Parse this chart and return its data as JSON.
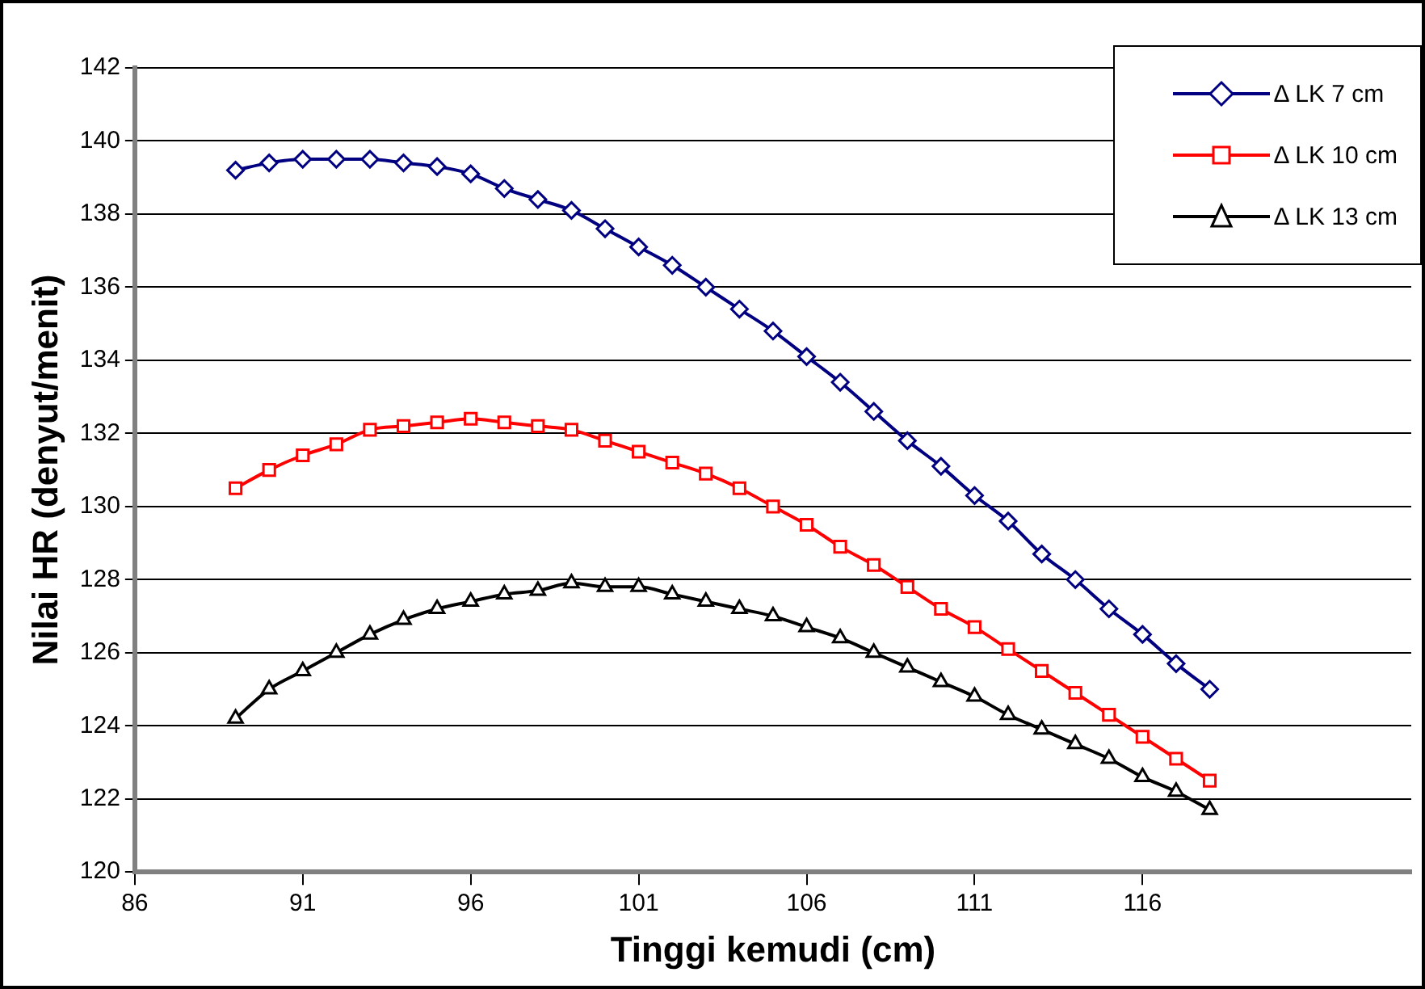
{
  "chart_data": {
    "type": "line",
    "xlabel": "Tinggi kemudi (cm)",
    "ylabel": "Nilai HR (denyut/menit)",
    "x": [
      89,
      90,
      91,
      92,
      93,
      94,
      95,
      96,
      97,
      98,
      99,
      100,
      101,
      102,
      103,
      104,
      105,
      106,
      107,
      108,
      109,
      110,
      111,
      112,
      113,
      114,
      115,
      116,
      117,
      118
    ],
    "series": [
      {
        "name": "Δ LK 7 cm",
        "color": "#000080",
        "marker": "diamond",
        "values": [
          139.2,
          139.4,
          139.5,
          139.5,
          139.5,
          139.4,
          139.3,
          139.1,
          138.7,
          138.4,
          138.1,
          137.6,
          137.1,
          136.6,
          136.0,
          135.4,
          134.8,
          134.1,
          133.4,
          132.6,
          131.8,
          131.1,
          130.3,
          129.6,
          128.7,
          128.0,
          127.2,
          126.5,
          125.7,
          125.0
        ]
      },
      {
        "name": "Δ LK 10 cm",
        "color": "#ff0000",
        "marker": "square",
        "values": [
          130.5,
          131.0,
          131.4,
          131.7,
          132.1,
          132.2,
          132.3,
          132.4,
          132.3,
          132.2,
          132.1,
          131.8,
          131.5,
          131.2,
          130.9,
          130.5,
          130.0,
          129.5,
          128.9,
          128.4,
          127.8,
          127.2,
          126.7,
          126.1,
          125.5,
          124.9,
          124.3,
          123.7,
          123.1,
          122.5
        ]
      },
      {
        "name": "Δ LK 13 cm",
        "color": "#000000",
        "marker": "triangle",
        "values": [
          124.2,
          125.0,
          125.5,
          126.0,
          126.5,
          126.9,
          127.2,
          127.4,
          127.6,
          127.7,
          127.9,
          127.8,
          127.8,
          127.6,
          127.4,
          127.2,
          127.0,
          126.7,
          126.4,
          126.0,
          125.6,
          125.2,
          124.8,
          124.3,
          123.9,
          123.5,
          123.1,
          122.6,
          122.2,
          121.7
        ]
      }
    ],
    "xlim": [
      86,
      124
    ],
    "xticks": [
      86,
      91,
      96,
      101,
      106,
      111,
      116
    ],
    "ylim": [
      120,
      142
    ],
    "yticks": [
      120,
      122,
      124,
      126,
      128,
      130,
      132,
      134,
      136,
      138,
      140,
      142
    ],
    "grid": "y",
    "legend": "top right",
    "line_style": "solid"
  }
}
